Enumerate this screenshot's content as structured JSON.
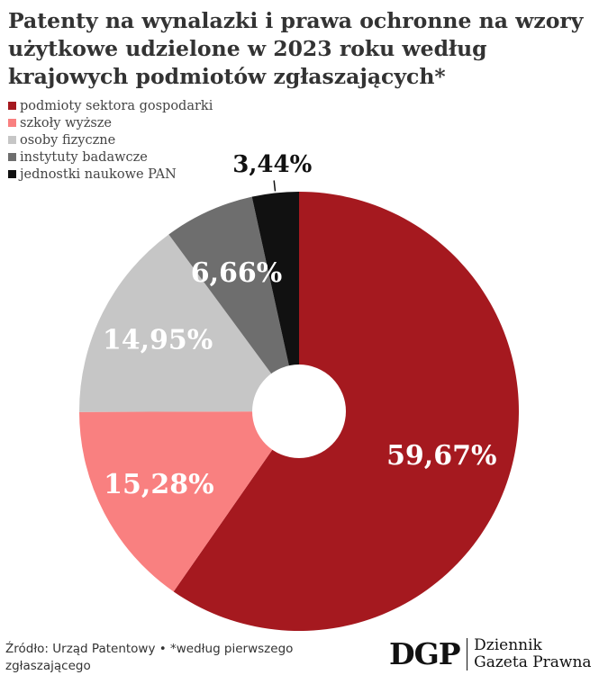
{
  "chart_data": {
    "type": "pie",
    "style": "donut",
    "title": "Patenty na wynalazki i prawa ochronne na wzory użytkowe udzielone w 2023 roku według krajowych podmiotów zgłaszających*",
    "legend_position": "top-left",
    "labels": [
      "podmioty sektora gospodarki",
      "szkoły wyższe",
      "osoby fizyczne",
      "instytuty badawcze",
      "jednostki naukowe PAN"
    ],
    "values": [
      59.67,
      15.28,
      14.95,
      6.66,
      3.44
    ],
    "value_labels": [
      "59,67%",
      "15,28%",
      "14,95%",
      "6,66%",
      "3,44%"
    ],
    "colors": [
      "#a5191f",
      "#f98080",
      "#c6c6c6",
      "#6e6e6e",
      "#111111"
    ]
  },
  "footer": {
    "source": "Źródło: Urząd Patentowy • *według pierwszego zgłaszającego"
  },
  "logo": {
    "mark": "DGP",
    "line1": "Dziennik",
    "line2": "Gazeta Prawna"
  }
}
